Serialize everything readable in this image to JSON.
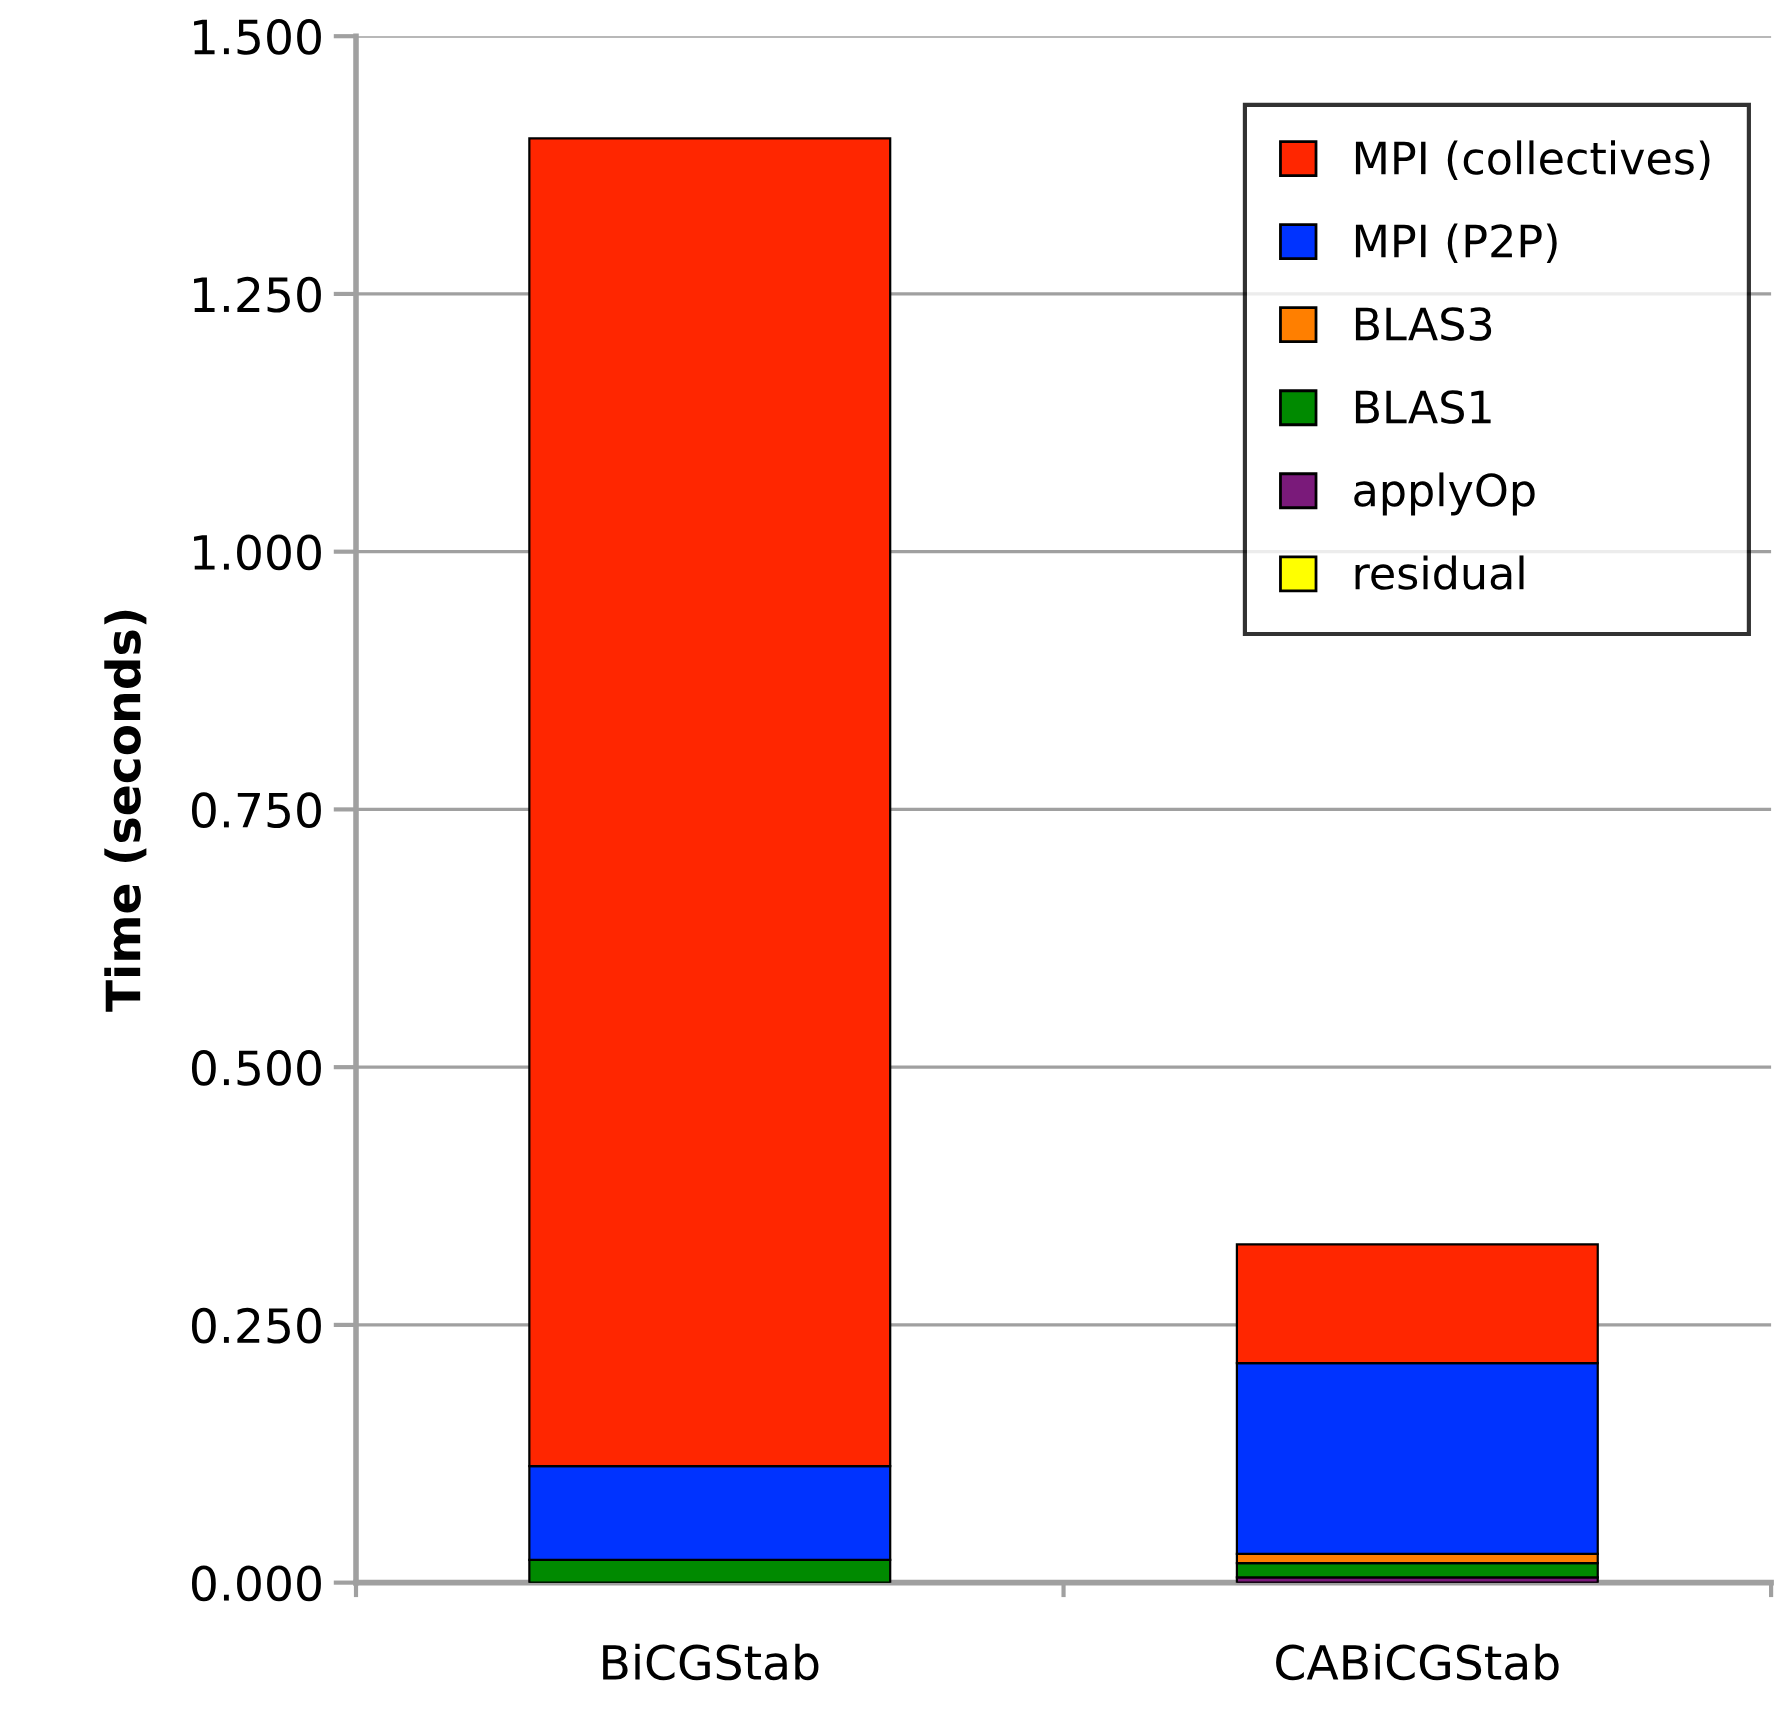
{
  "chart_data": {
    "type": "bar",
    "stacked": true,
    "ylabel": "Time (seconds)",
    "categories": [
      "BiCGStab",
      "CABiCGStab"
    ],
    "series": [
      {
        "name": "residual",
        "color": "#ffff00",
        "values": [
          0,
          0
        ]
      },
      {
        "name": "applyOp",
        "color": "#7a1a7a",
        "values": [
          0,
          0.005
        ]
      },
      {
        "name": "BLAS1",
        "color": "#008a00",
        "values": [
          0.022,
          0.014
        ]
      },
      {
        "name": "BLAS3",
        "color": "#ff7f00",
        "values": [
          0,
          0.009
        ]
      },
      {
        "name": "MPI (P2P)",
        "color": "#0033ff",
        "values": [
          0.091,
          0.185
        ]
      },
      {
        "name": "MPI (collectives)",
        "color": "#ff2600",
        "values": [
          1.288,
          0.115
        ]
      }
    ],
    "ylim": [
      0,
      1.5
    ],
    "yticks": [
      {
        "value": 0,
        "label": "0.000"
      },
      {
        "value": 0.25,
        "label": "0.250"
      },
      {
        "value": 0.5,
        "label": "0.500"
      },
      {
        "value": 0.75,
        "label": "0.750"
      },
      {
        "value": 1.0,
        "label": "1.000"
      },
      {
        "value": 1.25,
        "label": "1.250"
      },
      {
        "value": 1.5,
        "label": "1.500"
      }
    ],
    "grid": "y",
    "legend": "top right"
  }
}
